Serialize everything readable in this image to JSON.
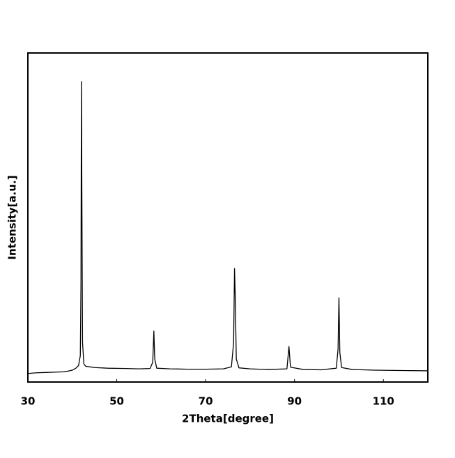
{
  "chart_data": {
    "type": "line",
    "xlabel": "2Theta[degree]",
    "ylabel": "Intensity[a.u.]",
    "xlim": [
      30,
      120
    ],
    "xticks": [
      30,
      50,
      70,
      90,
      110
    ],
    "ylim": [
      0,
      100
    ],
    "color": "#000000",
    "x": [
      30,
      32,
      34,
      36,
      38,
      39,
      40,
      40.8,
      41.4,
      41.8,
      41.95,
      42.05,
      42.15,
      42.3,
      42.6,
      43,
      45,
      48,
      52,
      55,
      57.5,
      58.1,
      58.35,
      58.55,
      59,
      62,
      66,
      70,
      74,
      75.8,
      76.3,
      76.5,
      76.65,
      76.9,
      77.5,
      80,
      84,
      88.3,
      88.75,
      89.1,
      92,
      96,
      99.4,
      99.8,
      100,
      100.2,
      100.6,
      103,
      108,
      114,
      120
    ],
    "values": [
      2.6,
      2.8,
      2.9,
      3.0,
      3.1,
      3.3,
      3.6,
      4.2,
      5.0,
      8,
      30,
      91.3,
      58,
      12,
      5.5,
      4.8,
      4.4,
      4.2,
      4.1,
      4.0,
      4.1,
      6,
      15.5,
      7,
      4.2,
      4.0,
      3.9,
      3.9,
      4.0,
      4.6,
      12,
      34.5,
      27,
      7,
      4.3,
      4.0,
      3.8,
      4.0,
      10.8,
      4.5,
      3.8,
      3.7,
      4.2,
      10,
      25.6,
      9,
      4.4,
      3.8,
      3.6,
      3.5,
      3.4
    ]
  }
}
